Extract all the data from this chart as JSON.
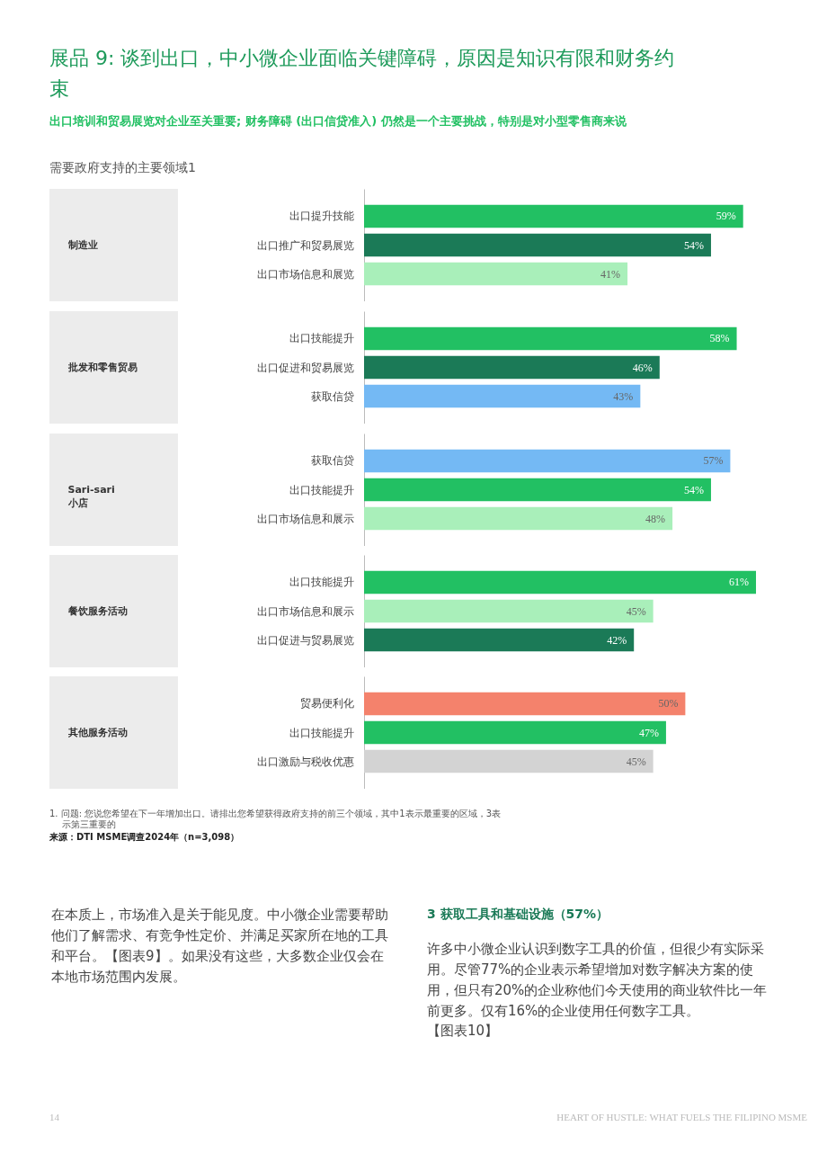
{
  "chart_data": [
    {
      "type": "other",
      "title": "展品 9: 谈到出口，中小微企业面临关键障碍，原因是知识有限和财务约束",
      "subtitle": "出口培训和贸易展览对企业至关重要; 财务障碍 (出口信贷准入) 仍然是一个主要挑战，特别是对小型零售商来说",
      "annotations": [
        "需要政府支持的主要领域1"
      ]
    },
    {
      "type": "bar",
      "orientation": "horizontal",
      "ylabel": "制造业",
      "categories": [
        "出口提升技能",
        "出口推广和贸易展览",
        "出口市场信息和展览"
      ],
      "values": [
        59,
        54,
        41
      ],
      "colors": [
        "#22c063",
        "#1b7a57",
        "#a9efba"
      ],
      "value_labels": [
        "59%",
        "54%",
        "41%"
      ]
    },
    {
      "type": "bar",
      "orientation": "horizontal",
      "ylabel": "批发和零售贸易",
      "categories": [
        "出口技能提升",
        "出口促进和贸易展览",
        "获取信贷"
      ],
      "values": [
        58,
        46,
        43
      ],
      "colors": [
        "#22c063",
        "#1b7a57",
        "#74b9f4"
      ],
      "value_labels": [
        "58%",
        "46%",
        "43%"
      ]
    },
    {
      "type": "bar",
      "orientation": "horizontal",
      "ylabel": "Sari-sari\n小店",
      "categories": [
        "获取信贷",
        "出口技能提升",
        "出口市场信息和展示"
      ],
      "values": [
        57,
        54,
        48
      ],
      "colors": [
        "#74b9f4",
        "#22c063",
        "#a9efba"
      ],
      "value_labels": [
        "57%",
        "54%",
        "48%"
      ]
    },
    {
      "type": "bar",
      "orientation": "horizontal",
      "ylabel": "餐饮服务活动",
      "categories": [
        "出口技能提升",
        "出口市场信息和展示",
        "出口促进与贸易展览"
      ],
      "values": [
        61,
        45,
        42
      ],
      "colors": [
        "#22c063",
        "#a9efba",
        "#1b7a57"
      ],
      "value_labels": [
        "61%",
        "45%",
        "42%"
      ]
    },
    {
      "type": "bar",
      "orientation": "horizontal",
      "ylabel": "其他服务活动",
      "categories": [
        "贸易便利化",
        "出口技能提升",
        "出口激励与税收优惠"
      ],
      "values": [
        50,
        47,
        45
      ],
      "colors": [
        "#f4826c",
        "#22c063",
        "#d3d3d3"
      ],
      "value_labels": [
        "50%",
        "47%",
        "45%"
      ]
    },
    {
      "type": "other",
      "annotations": [
        "1. 问题: 您说您希望在下一年增加出口。请排出您希望获得政府支持的前三个领域，其中1表示最重要的区域，3表示第三重要的",
        "来源：DTI MSME调查2024年（n=3,098）",
        "在本质上，市场准入是关于能见度。中小微企业需要帮助他们了解需求、有竞争性定价、并满足买家所在地的工具和平台。【图表9】。如果没有这些，大多数企业仅会在本地市场范围内发展。",
        "3  获取工具和基础设施（57%）",
        "许多中小微企业认识到数字工具的价值，但很少有实际采用。尽管77%的企业表示希望增加对数字解决方案的使用，但只有20%的企业称他们今天使用的商业软件比一年前更多。仅有16%的企业使用任何数字工具。",
        "【图表10】",
        "14",
        "HEART OF HUSTLE: WHAT FUELS THE FILIPINO MSME"
      ]
    }
  ]
}
